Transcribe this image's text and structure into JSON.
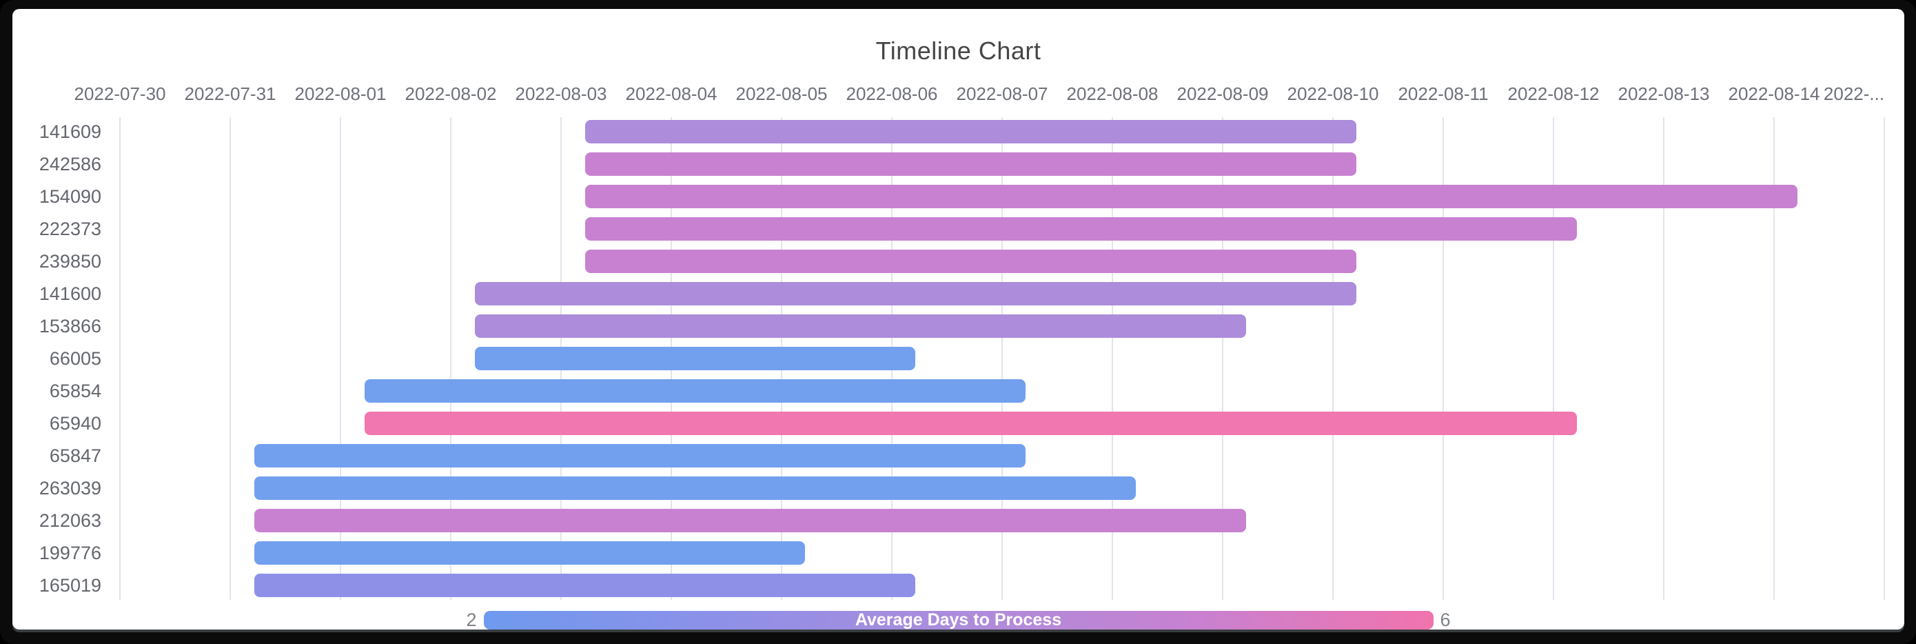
{
  "title": "Timeline Chart",
  "chart_data": {
    "type": "bar",
    "variant": "horizontal-timeline-gantt",
    "title": "Timeline Chart",
    "grid": "vertical-date-gridlines-on",
    "x_axis": {
      "origin_date": "2022-07-30",
      "tick_interval_days": 1,
      "labels": [
        "2022-07-30",
        "2022-07-31",
        "2022-08-01",
        "2022-08-02",
        "2022-08-03",
        "2022-08-04",
        "2022-08-05",
        "2022-08-06",
        "2022-08-07",
        "2022-08-08",
        "2022-08-09",
        "2022-08-10",
        "2022-08-11",
        "2022-08-12",
        "2022-08-13",
        "2022-08-14",
        "2022-..."
      ]
    },
    "rows": [
      {
        "id": "141609",
        "start_date": "2022-08-03",
        "end_date": "2022-08-10",
        "start_offset_days": 4.22,
        "end_offset_days": 11.21,
        "color": "#AC8CDB"
      },
      {
        "id": "242586",
        "start_date": "2022-08-03",
        "end_date": "2022-08-10",
        "start_offset_days": 4.22,
        "end_offset_days": 11.21,
        "color": "#C881D1"
      },
      {
        "id": "154090",
        "start_date": "2022-08-03",
        "end_date": "2022-08-14",
        "start_offset_days": 4.22,
        "end_offset_days": 15.21,
        "color": "#C881D1"
      },
      {
        "id": "222373",
        "start_date": "2022-08-03",
        "end_date": "2022-08-12",
        "start_offset_days": 4.22,
        "end_offset_days": 13.21,
        "color": "#C881D1"
      },
      {
        "id": "239850",
        "start_date": "2022-08-03",
        "end_date": "2022-08-10",
        "start_offset_days": 4.22,
        "end_offset_days": 11.21,
        "color": "#C881D1"
      },
      {
        "id": "141600",
        "start_date": "2022-08-02",
        "end_date": "2022-08-10",
        "start_offset_days": 3.22,
        "end_offset_days": 11.21,
        "color": "#AC8CDB"
      },
      {
        "id": "153866",
        "start_date": "2022-08-02",
        "end_date": "2022-08-09",
        "start_offset_days": 3.22,
        "end_offset_days": 10.21,
        "color": "#AC8CDB"
      },
      {
        "id": "66005",
        "start_date": "2022-08-02",
        "end_date": "2022-08-06",
        "start_offset_days": 3.22,
        "end_offset_days": 7.21,
        "color": "#72A0EF"
      },
      {
        "id": "65854",
        "start_date": "2022-08-01",
        "end_date": "2022-08-07",
        "start_offset_days": 2.22,
        "end_offset_days": 8.21,
        "color": "#72A0EF"
      },
      {
        "id": "65940",
        "start_date": "2022-08-01",
        "end_date": "2022-08-12",
        "start_offset_days": 2.22,
        "end_offset_days": 13.21,
        "color": "#F077AF"
      },
      {
        "id": "65847",
        "start_date": "2022-07-31",
        "end_date": "2022-08-07",
        "start_offset_days": 1.22,
        "end_offset_days": 8.21,
        "color": "#72A0EF"
      },
      {
        "id": "263039",
        "start_date": "2022-07-31",
        "end_date": "2022-08-08",
        "start_offset_days": 1.22,
        "end_offset_days": 9.21,
        "color": "#72A0EF"
      },
      {
        "id": "212063",
        "start_date": "2022-07-31",
        "end_date": "2022-08-09",
        "start_offset_days": 1.22,
        "end_offset_days": 10.21,
        "color": "#C881D1"
      },
      {
        "id": "199776",
        "start_date": "2022-07-31",
        "end_date": "2022-08-05",
        "start_offset_days": 1.22,
        "end_offset_days": 6.21,
        "color": "#72A0EF"
      },
      {
        "id": "165019",
        "start_date": "2022-07-31",
        "end_date": "2022-08-06",
        "start_offset_days": 1.22,
        "end_offset_days": 7.21,
        "color": "#8E90E8"
      }
    ],
    "legend": {
      "title": "Average Days to Process",
      "min": "2",
      "max": "6",
      "gradient_colors": [
        "#6E9AEE",
        "#8E90E8",
        "#AC8CDB",
        "#C881D1",
        "#F173AD"
      ],
      "position": "bottom-center"
    }
  }
}
